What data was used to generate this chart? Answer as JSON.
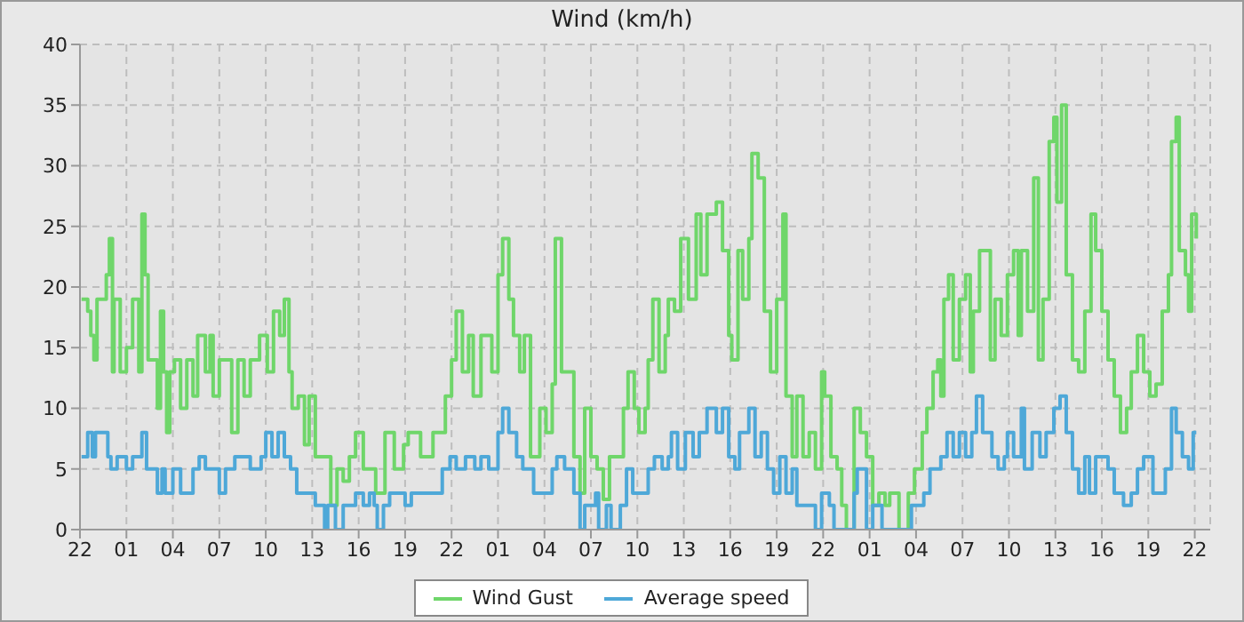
{
  "chart_data": {
    "type": "step",
    "title": "Wind (km/h)",
    "line_style": "solid",
    "marker": "none",
    "grid": true,
    "legend": "bottom",
    "xlim": [
      "--01-01T22:00",
      "--01-04T23:00"
    ],
    "xticks": [
      {
        "value": "--01-01T22:00",
        "label": "22"
      },
      {
        "value": "--01-02T01:00",
        "label": "01"
      },
      {
        "value": "--01-02T04:00",
        "label": "04"
      },
      {
        "value": "--01-02T07:00",
        "label": "07"
      },
      {
        "value": "--01-02T10:00",
        "label": "10"
      },
      {
        "value": "--01-02T13:00",
        "label": "13"
      },
      {
        "value": "--01-02T16:00",
        "label": "16"
      },
      {
        "value": "--01-02T19:00",
        "label": "19"
      },
      {
        "value": "--01-02T22:00",
        "label": "22"
      },
      {
        "value": "--01-03T01:00",
        "label": "01"
      },
      {
        "value": "--01-03T04:00",
        "label": "04"
      },
      {
        "value": "--01-03T07:00",
        "label": "07"
      },
      {
        "value": "--01-03T10:00",
        "label": "10"
      },
      {
        "value": "--01-03T13:00",
        "label": "13"
      },
      {
        "value": "--01-03T16:00",
        "label": "16"
      },
      {
        "value": "--01-03T19:00",
        "label": "19"
      },
      {
        "value": "--01-03T22:00",
        "label": "22"
      },
      {
        "value": "--01-04T01:00",
        "label": "01"
      },
      {
        "value": "--01-04T04:00",
        "label": "04"
      },
      {
        "value": "--01-04T07:00",
        "label": "07"
      },
      {
        "value": "--01-04T10:00",
        "label": "10"
      },
      {
        "value": "--01-04T13:00",
        "label": "13"
      },
      {
        "value": "--01-04T16:00",
        "label": "16"
      },
      {
        "value": "--01-04T19:00",
        "label": "19"
      },
      {
        "value": "--01-04T22:00",
        "label": "22"
      }
    ],
    "ylim": [
      0,
      40
    ],
    "yticks": [
      0,
      5,
      10,
      15,
      20,
      25,
      30,
      35,
      40
    ],
    "series": [
      {
        "name": "Wind Gust",
        "color": "#6fd66a",
        "x": [
          "--01-01T22:06",
          "--01-01T22:30",
          "--01-01T22:42",
          "--01-01T22:54",
          "--01-01T23:06",
          "--01-01T23:30",
          "--01-01T23:42",
          "--01-01T23:54",
          "--01-02T00:06",
          "--01-02T00:12",
          "--01-02T00:36",
          "--01-02T01:00",
          "--01-02T01:24",
          "--01-02T01:48",
          "--01-02T02:00",
          "--01-02T02:12",
          "--01-02T02:24",
          "--01-02T03:00",
          "--01-02T03:12",
          "--01-02T03:24",
          "--01-02T03:36",
          "--01-02T03:48",
          "--01-02T04:06",
          "--01-02T04:30",
          "--01-02T04:54",
          "--01-02T05:18",
          "--01-02T05:36",
          "--01-02T06:06",
          "--01-02T06:24",
          "--01-02T06:36",
          "--01-02T07:00",
          "--01-02T07:30",
          "--01-02T07:48",
          "--01-02T08:12",
          "--01-02T08:36",
          "--01-02T09:00",
          "--01-02T09:36",
          "--01-02T10:06",
          "--01-02T10:30",
          "--01-02T10:54",
          "--01-02T11:12",
          "--01-02T11:30",
          "--01-02T11:42",
          "--01-02T12:06",
          "--01-02T12:30",
          "--01-02T12:48",
          "--01-02T13:12",
          "--01-02T13:36",
          "--01-02T14:12",
          "--01-02T14:36",
          "--01-02T15:00",
          "--01-02T15:24",
          "--01-02T15:48",
          "--01-02T16:18",
          "--01-02T17:06",
          "--01-02T17:42",
          "--01-02T18:18",
          "--01-02T18:54",
          "--01-02T19:12",
          "--01-02T20:00",
          "--01-02T20:48",
          "--01-02T21:36",
          "--01-02T22:00",
          "--01-02T22:18",
          "--01-02T22:42",
          "--01-02T23:06",
          "--01-02T23:24",
          "--01-02T23:54",
          "--01-03T00:36",
          "--01-03T01:00",
          "--01-03T01:18",
          "--01-03T01:42",
          "--01-03T02:00",
          "--01-03T02:24",
          "--01-03T02:42",
          "--01-03T03:06",
          "--01-03T03:42",
          "--01-03T04:06",
          "--01-03T04:30",
          "--01-03T04:42",
          "--01-03T05:06",
          "--01-03T05:30",
          "--01-03T05:54",
          "--01-03T06:18",
          "--01-03T06:36",
          "--01-03T07:00",
          "--01-03T07:24",
          "--01-03T07:48",
          "--01-03T08:12",
          "--01-03T08:42",
          "--01-03T09:06",
          "--01-03T09:24",
          "--01-03T09:48",
          "--01-03T10:06",
          "--01-03T10:30",
          "--01-03T10:42",
          "--01-03T11:00",
          "--01-03T11:24",
          "--01-03T11:48",
          "--01-03T12:00",
          "--01-03T12:24",
          "--01-03T12:48",
          "--01-03T13:18",
          "--01-03T13:48",
          "--01-03T14:06",
          "--01-03T14:30",
          "--01-03T15:06",
          "--01-03T15:30",
          "--01-03T15:54",
          "--01-03T16:06",
          "--01-03T16:30",
          "--01-03T16:48",
          "--01-03T17:12",
          "--01-03T17:24",
          "--01-03T17:48",
          "--01-03T18:12",
          "--01-03T18:36",
          "--01-03T19:00",
          "--01-03T19:24",
          "--01-03T19:36",
          "--01-03T20:00",
          "--01-03T20:18",
          "--01-03T20:42",
          "--01-03T21:06",
          "--01-03T21:30",
          "--01-03T21:54",
          "--01-03T22:06",
          "--01-03T22:30",
          "--01-03T22:54",
          "--01-03T23:12",
          "--01-03T23:30",
          "--01-04T00:00",
          "--01-04T00:24",
          "--01-04T00:48",
          "--01-04T01:12",
          "--01-04T01:36",
          "--01-04T02:00",
          "--01-04T02:18",
          "--01-04T02:54",
          "--01-04T03:30",
          "--01-04T03:54",
          "--01-04T04:24",
          "--01-04T04:42",
          "--01-04T05:06",
          "--01-04T05:24",
          "--01-04T05:36",
          "--01-04T05:48",
          "--01-04T06:06",
          "--01-04T06:24",
          "--01-04T06:48",
          "--01-04T07:12",
          "--01-04T07:30",
          "--01-04T07:42",
          "--01-04T08:06",
          "--01-04T08:30",
          "--01-04T08:48",
          "--01-04T09:06",
          "--01-04T09:30",
          "--01-04T09:54",
          "--01-04T10:18",
          "--01-04T10:36",
          "--01-04T10:48",
          "--01-04T11:12",
          "--01-04T11:36",
          "--01-04T11:54",
          "--01-04T12:12",
          "--01-04T12:36",
          "--01-04T12:54",
          "--01-04T13:06",
          "--01-04T13:24",
          "--01-04T13:42",
          "--01-04T14:06",
          "--01-04T14:30",
          "--01-04T14:54",
          "--01-04T15:18",
          "--01-04T15:36",
          "--01-04T16:00",
          "--01-04T16:24",
          "--01-04T16:48",
          "--01-04T17:12",
          "--01-04T17:36",
          "--01-04T17:54",
          "--01-04T18:18",
          "--01-04T18:42",
          "--01-04T19:06",
          "--01-04T19:30",
          "--01-04T19:54",
          "--01-04T20:18",
          "--01-04T20:30",
          "--01-04T20:48",
          "--01-04T21:00",
          "--01-04T21:24",
          "--01-04T21:36",
          "--01-04T21:48",
          "--01-04T22:06"
        ],
        "values": [
          19,
          18,
          16,
          14,
          19,
          19,
          21,
          24,
          13,
          19,
          13,
          15,
          19,
          13,
          26,
          21,
          14,
          10,
          18,
          13,
          8,
          13,
          14,
          10,
          14,
          11,
          16,
          13,
          16,
          11,
          14,
          14,
          8,
          14,
          11,
          14,
          16,
          13,
          18,
          16,
          19,
          13,
          10,
          11,
          7,
          11,
          6,
          6,
          2,
          5,
          4,
          6,
          8,
          5,
          3,
          8,
          5,
          7,
          8,
          6,
          8,
          11,
          14,
          18,
          13,
          16,
          11,
          16,
          13,
          21,
          24,
          19,
          16,
          13,
          16,
          6,
          10,
          8,
          12,
          24,
          13,
          13,
          6,
          3,
          10,
          6,
          5,
          2.5,
          6,
          6,
          10,
          13,
          10,
          8,
          10,
          14,
          19,
          13,
          16,
          19,
          18,
          24,
          19,
          26,
          21,
          26,
          27,
          23,
          16,
          14,
          23,
          19,
          24,
          31,
          29,
          18,
          13,
          19,
          26,
          11,
          6,
          11,
          6,
          8,
          5,
          13,
          11,
          6,
          5,
          2,
          0,
          10,
          8,
          6,
          2,
          3,
          2,
          3,
          0,
          3,
          5,
          8,
          10,
          13,
          14,
          11,
          19,
          21,
          14,
          19,
          21,
          13,
          18,
          23,
          23,
          14,
          19,
          16,
          21,
          23,
          16,
          23,
          18,
          29,
          14,
          19,
          32,
          34,
          27,
          35,
          21,
          14,
          13,
          18,
          26,
          23,
          18,
          14,
          11,
          8,
          10,
          13,
          16,
          13,
          11,
          12,
          18,
          21,
          32,
          34,
          23,
          21,
          18,
          26,
          24
        ]
      },
      {
        "name": "Average speed",
        "color": "#4ea8d8",
        "x": [
          "--01-01T22:06",
          "--01-01T22:30",
          "--01-01T22:48",
          "--01-01T23:00",
          "--01-01T23:48",
          "--01-02T00:00",
          "--01-02T00:24",
          "--01-02T01:00",
          "--01-02T01:24",
          "--01-02T02:00",
          "--01-02T02:18",
          "--01-02T03:00",
          "--01-02T03:18",
          "--01-02T03:30",
          "--01-02T04:00",
          "--01-02T04:30",
          "--01-02T05:18",
          "--01-02T05:42",
          "--01-02T06:06",
          "--01-02T07:00",
          "--01-02T07:24",
          "--01-02T08:00",
          "--01-02T09:00",
          "--01-02T09:42",
          "--01-02T10:00",
          "--01-02T10:24",
          "--01-02T10:48",
          "--01-02T11:12",
          "--01-02T11:36",
          "--01-02T12:00",
          "--01-02T13:12",
          "--01-02T13:48",
          "--01-02T14:00",
          "--01-02T14:30",
          "--01-02T15:00",
          "--01-02T15:48",
          "--01-02T16:18",
          "--01-02T16:42",
          "--01-02T17:00",
          "--01-02T17:12",
          "--01-02T17:36",
          "--01-02T18:00",
          "--01-02T19:00",
          "--01-02T19:24",
          "--01-02T21:24",
          "--01-02T21:54",
          "--01-02T22:18",
          "--01-02T22:54",
          "--01-02T23:30",
          "--01-02T23:54",
          "--01-03T00:24",
          "--01-03T01:00",
          "--01-03T01:18",
          "--01-03T01:42",
          "--01-03T02:12",
          "--01-03T02:36",
          "--01-03T03:18",
          "--01-03T04:06",
          "--01-03T04:30",
          "--01-03T04:48",
          "--01-03T05:18",
          "--01-03T05:54",
          "--01-03T06:18",
          "--01-03T06:36",
          "--01-03T07:18",
          "--01-03T07:30",
          "--01-03T08:00",
          "--01-03T08:18",
          "--01-03T08:54",
          "--01-03T09:18",
          "--01-03T09:42",
          "--01-03T10:42",
          "--01-03T11:06",
          "--01-03T11:36",
          "--01-03T12:00",
          "--01-03T12:12",
          "--01-03T12:36",
          "--01-03T13:06",
          "--01-03T13:36",
          "--01-03T14:00",
          "--01-03T14:30",
          "--01-03T15:06",
          "--01-03T15:30",
          "--01-03T15:54",
          "--01-03T16:18",
          "--01-03T16:36",
          "--01-03T17:12",
          "--01-03T17:36",
          "--01-03T18:00",
          "--01-03T18:24",
          "--01-03T18:48",
          "--01-03T19:12",
          "--01-03T19:36",
          "--01-03T20:00",
          "--01-03T20:18",
          "--01-03T21:06",
          "--01-03T21:30",
          "--01-03T21:54",
          "--01-03T22:24",
          "--01-03T22:42",
          "--01-04T00:00",
          "--01-04T00:12",
          "--01-04T00:48",
          "--01-04T01:12",
          "--01-04T01:48",
          "--01-04T03:42",
          "--01-04T04:30",
          "--01-04T04:54",
          "--01-04T05:36",
          "--01-04T06:00",
          "--01-04T06:24",
          "--01-04T06:48",
          "--01-04T07:12",
          "--01-04T07:36",
          "--01-04T07:54",
          "--01-04T08:18",
          "--01-04T08:54",
          "--01-04T09:18",
          "--01-04T09:42",
          "--01-04T09:54",
          "--01-04T10:18",
          "--01-04T10:48",
          "--01-04T11:00",
          "--01-04T11:30",
          "--01-04T12:00",
          "--01-04T12:24",
          "--01-04T12:54",
          "--01-04T13:18",
          "--01-04T13:42",
          "--01-04T14:06",
          "--01-04T14:30",
          "--01-04T14:54",
          "--01-04T15:12",
          "--01-04T15:36",
          "--01-04T16:24",
          "--01-04T16:48",
          "--01-04T17:24",
          "--01-04T17:54",
          "--01-04T18:18",
          "--01-04T18:42",
          "--01-04T19:18",
          "--01-04T20:06",
          "--01-04T20:30",
          "--01-04T20:48",
          "--01-04T21:12",
          "--01-04T21:36",
          "--01-04T21:54",
          "--01-04T22:06"
        ],
        "values": [
          6,
          8,
          6,
          8,
          6,
          5,
          6,
          5,
          6,
          8,
          5,
          3,
          5,
          3,
          5,
          3,
          5,
          6,
          5,
          3,
          5,
          6,
          5,
          6,
          8,
          6,
          8,
          6,
          5,
          3,
          2,
          0,
          2,
          0,
          2,
          3,
          2,
          3,
          2,
          0,
          2,
          3,
          2,
          3,
          5,
          6,
          5,
          6,
          5,
          6,
          5,
          8,
          10,
          8,
          6,
          5,
          3,
          3,
          5,
          6,
          5,
          3,
          0,
          2,
          3,
          0,
          2,
          0,
          2,
          5,
          3,
          5,
          6,
          5,
          6,
          8,
          5,
          8,
          6,
          8,
          10,
          8,
          10,
          6,
          5,
          8,
          10,
          6,
          8,
          5,
          3,
          6,
          3,
          5,
          2,
          2,
          0,
          3,
          2,
          0,
          3,
          5,
          0,
          2,
          0,
          2,
          3,
          5,
          6,
          8,
          6,
          8,
          6,
          8,
          11,
          8,
          6,
          5,
          6,
          8,
          6,
          10,
          5,
          8,
          6,
          8,
          10,
          11,
          8,
          5,
          3,
          6,
          3,
          6,
          5,
          3,
          2,
          3,
          5,
          6,
          3,
          5,
          10,
          8,
          6,
          5,
          8,
          8
        ]
      }
    ]
  }
}
